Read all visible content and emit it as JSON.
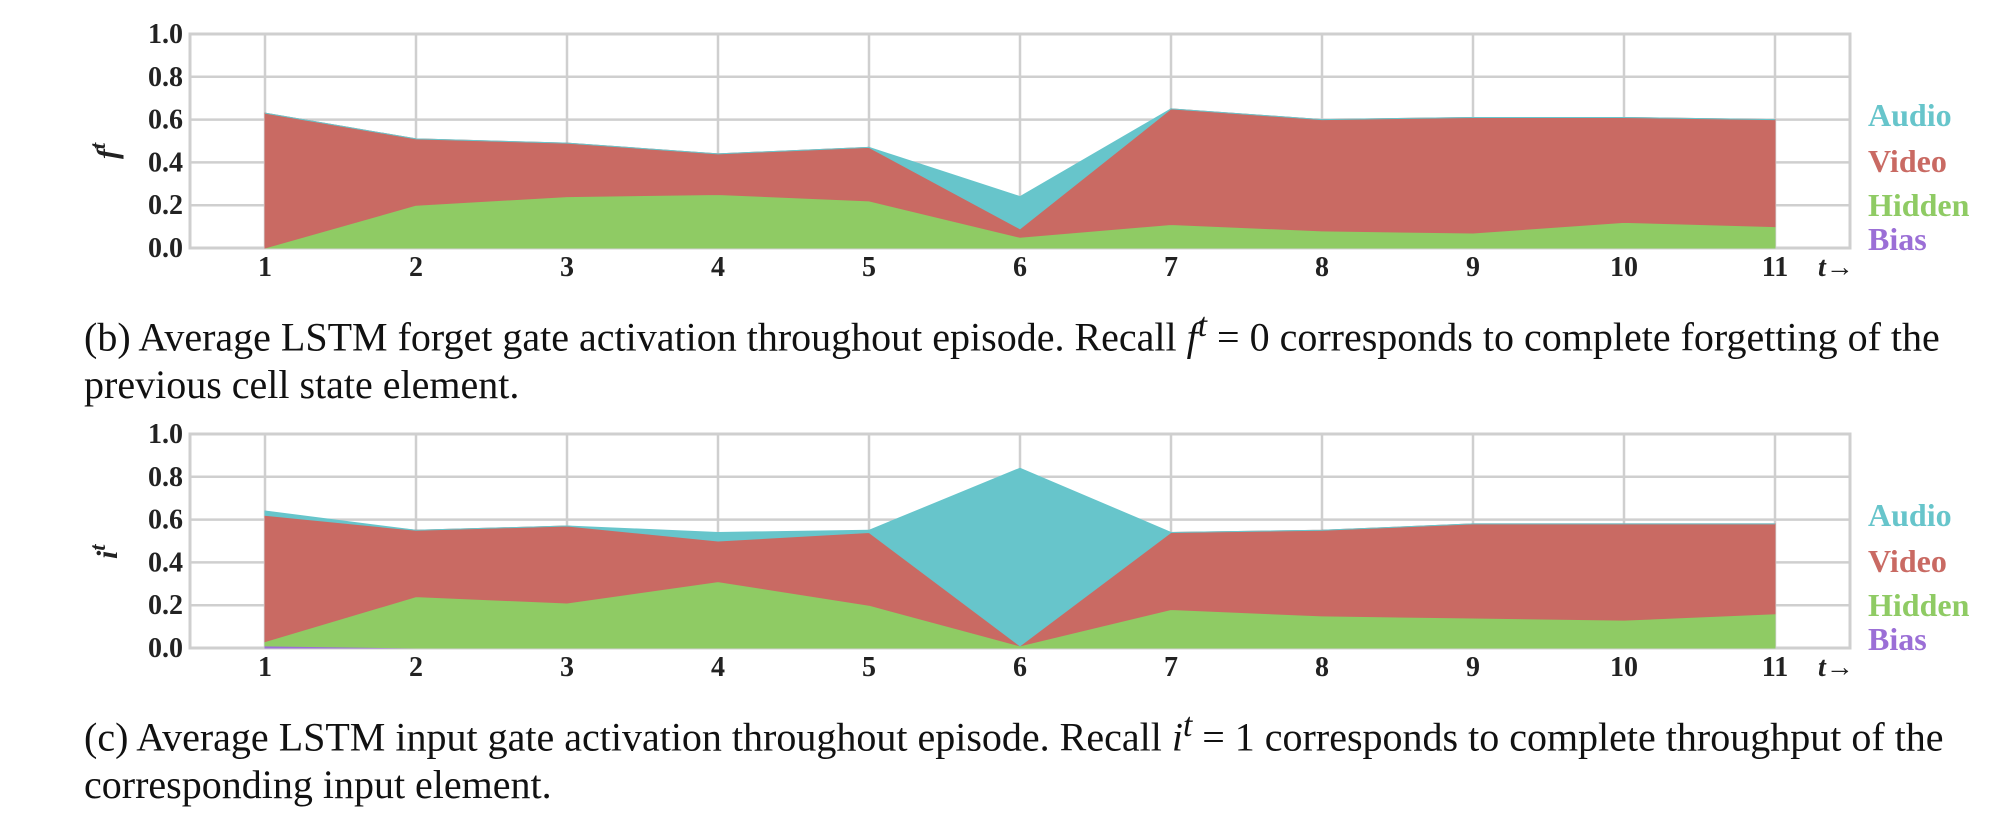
{
  "chart_data": [
    {
      "type": "area",
      "stacked": true,
      "x": [
        1,
        2,
        3,
        4,
        5,
        6,
        7,
        8,
        9,
        10,
        11
      ],
      "xlabel": "t→",
      "ylabel": "f",
      "ylabel_sup": "t",
      "ylim": [
        0.0,
        1.0
      ],
      "yticks": [
        "0.0",
        "0.2",
        "0.4",
        "0.6",
        "0.8",
        "1.0"
      ],
      "grid": true,
      "legend_placement": "right",
      "series": [
        {
          "name": "Bias",
          "color": "#9b6fd6",
          "values": [
            0.0,
            0.0,
            0.0,
            0.0,
            0.0,
            0.0,
            0.0,
            0.0,
            0.0,
            0.0,
            0.0
          ]
        },
        {
          "name": "Hidden",
          "color": "#8fcb64",
          "values": [
            0.0,
            0.2,
            0.24,
            0.25,
            0.22,
            0.05,
            0.11,
            0.08,
            0.07,
            0.12,
            0.1
          ]
        },
        {
          "name": "Video",
          "color": "#c96a63",
          "values": [
            0.63,
            0.31,
            0.25,
            0.19,
            0.25,
            0.04,
            0.54,
            0.52,
            0.54,
            0.49,
            0.5
          ]
        },
        {
          "name": "Audio",
          "color": "#67c5cb",
          "values": [
            0.0,
            0.0,
            0.0,
            0.0,
            0.0,
            0.15,
            0.0,
            0.0,
            0.0,
            0.0,
            0.0
          ]
        }
      ]
    },
    {
      "type": "area",
      "stacked": true,
      "x": [
        1,
        2,
        3,
        4,
        5,
        6,
        7,
        8,
        9,
        10,
        11
      ],
      "xlabel": "t→",
      "ylabel": "i",
      "ylabel_sup": "t",
      "ylim": [
        0.0,
        1.0
      ],
      "yticks": [
        "0.0",
        "0.2",
        "0.4",
        "0.6",
        "0.8",
        "1.0"
      ],
      "grid": true,
      "legend_placement": "right",
      "series": [
        {
          "name": "Bias",
          "color": "#9b6fd6",
          "values": [
            0.01,
            0.0,
            0.0,
            0.0,
            0.0,
            0.0,
            0.0,
            0.0,
            0.0,
            0.0,
            0.0
          ]
        },
        {
          "name": "Hidden",
          "color": "#8fcb64",
          "values": [
            0.02,
            0.24,
            0.21,
            0.31,
            0.2,
            0.01,
            0.18,
            0.15,
            0.14,
            0.13,
            0.16
          ]
        },
        {
          "name": "Video",
          "color": "#c96a63",
          "values": [
            0.59,
            0.31,
            0.36,
            0.19,
            0.34,
            0.0,
            0.36,
            0.4,
            0.44,
            0.45,
            0.42
          ]
        },
        {
          "name": "Audio",
          "color": "#67c5cb",
          "values": [
            0.02,
            0.0,
            0.0,
            0.04,
            0.01,
            0.83,
            0.0,
            0.0,
            0.0,
            0.0,
            0.0
          ]
        }
      ]
    }
  ],
  "captions": {
    "b": {
      "prefix": "(b) Average LSTM forget gate activation throughout episode. Recall ",
      "var": "f",
      "sup": "t",
      "eq": " = 0",
      "suffix": " corresponds to complete forgetting of the previous cell state element."
    },
    "c": {
      "prefix": "(c) Average LSTM input gate activation throughout episode. Recall ",
      "var": "i",
      "sup": "t",
      "eq": " = 1",
      "suffix": " corresponds to complete throughput of the corresponding input element."
    }
  }
}
